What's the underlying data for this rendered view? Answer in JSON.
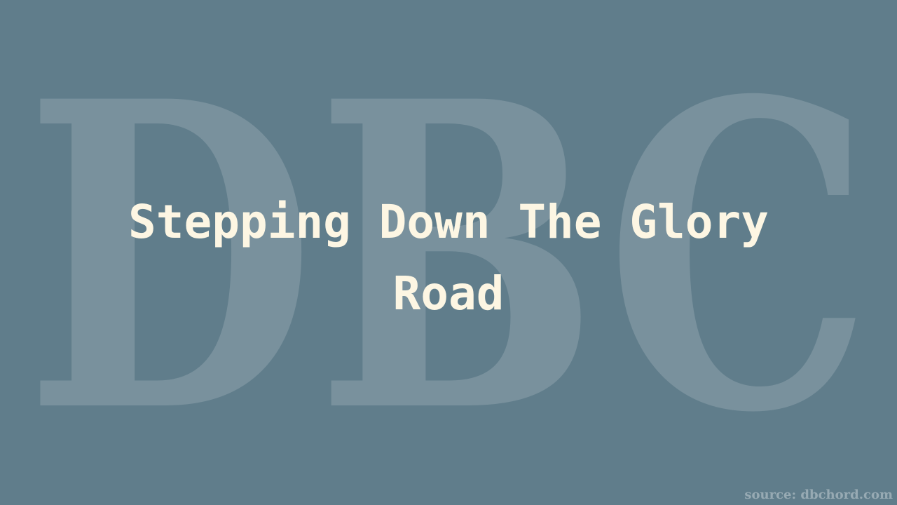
{
  "watermark": {
    "text": "DBC"
  },
  "title": "Stepping Down The Glory Road",
  "source": "source: dbchord.com",
  "colors": {
    "background": "#607d8b",
    "title": "#fdf6e3",
    "watermark": "#ffffff"
  }
}
